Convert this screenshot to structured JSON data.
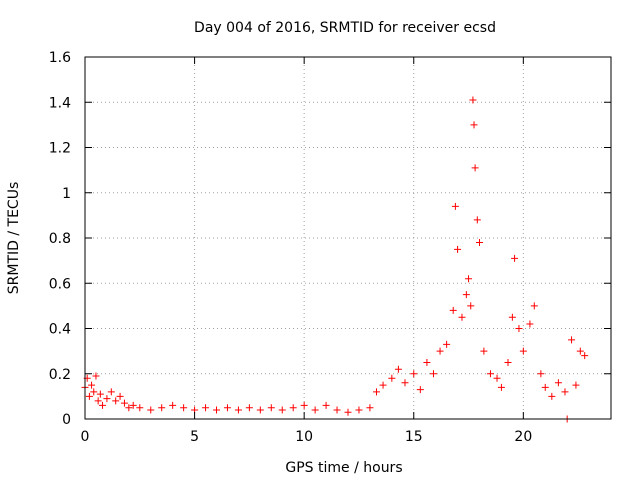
{
  "chart_data": {
    "type": "scatter",
    "title": "Day 004 of 2016, SRMTID for receiver ecsd",
    "xlabel": "GPS time / hours",
    "ylabel": "SRMTID / TECUs",
    "xlim": [
      0,
      24
    ],
    "ylim": [
      0,
      1.6
    ],
    "xticks": [
      0,
      5,
      10,
      15,
      20
    ],
    "xtick_labels": [
      "0",
      "5",
      "10",
      "15",
      "20"
    ],
    "yticks": [
      0,
      0.2,
      0.4,
      0.6,
      0.8,
      1.0,
      1.2,
      1.4,
      1.6
    ],
    "ytick_labels": [
      "0",
      "0.2",
      "0.4",
      "0.6",
      "0.8",
      "1",
      "1.2",
      "1.4",
      "1.6"
    ],
    "grid": true,
    "marker": "+",
    "series": [
      {
        "name": "SRMTID",
        "color": "#ff0000",
        "x": [
          0.0,
          0.1,
          0.2,
          0.3,
          0.4,
          0.5,
          0.6,
          0.7,
          0.8,
          1.0,
          1.2,
          1.4,
          1.6,
          1.8,
          2.0,
          2.2,
          2.5,
          3.0,
          3.5,
          4.0,
          4.5,
          5.0,
          5.5,
          6.0,
          6.5,
          7.0,
          7.5,
          8.0,
          8.5,
          9.0,
          9.5,
          10.0,
          10.5,
          11.0,
          11.5,
          12.0,
          12.5,
          13.0,
          13.3,
          13.6,
          14.0,
          14.3,
          14.6,
          15.0,
          15.3,
          15.6,
          15.9,
          16.2,
          16.5,
          16.8,
          16.9,
          17.0,
          17.2,
          17.4,
          17.5,
          17.6,
          17.7,
          17.75,
          17.8,
          17.9,
          18.0,
          18.2,
          18.5,
          18.8,
          19.0,
          19.3,
          19.5,
          19.6,
          19.8,
          20.0,
          20.3,
          20.5,
          20.8,
          21.0,
          21.3,
          21.6,
          21.9,
          22.0,
          22.2,
          22.4,
          22.6,
          22.8
        ],
        "y": [
          0.14,
          0.18,
          0.1,
          0.15,
          0.12,
          0.19,
          0.08,
          0.11,
          0.06,
          0.09,
          0.12,
          0.08,
          0.1,
          0.07,
          0.05,
          0.06,
          0.05,
          0.04,
          0.05,
          0.06,
          0.05,
          0.04,
          0.05,
          0.04,
          0.05,
          0.04,
          0.05,
          0.04,
          0.05,
          0.04,
          0.05,
          0.06,
          0.04,
          0.06,
          0.04,
          0.03,
          0.04,
          0.05,
          0.12,
          0.15,
          0.18,
          0.22,
          0.16,
          0.2,
          0.13,
          0.25,
          0.2,
          0.3,
          0.33,
          0.48,
          0.94,
          0.75,
          0.45,
          0.55,
          0.62,
          0.5,
          1.41,
          1.3,
          1.11,
          0.88,
          0.78,
          0.3,
          0.2,
          0.18,
          0.14,
          0.25,
          0.45,
          0.71,
          0.4,
          0.3,
          0.42,
          0.5,
          0.2,
          0.14,
          0.1,
          0.16,
          0.12,
          0.0,
          0.35,
          0.15,
          0.3,
          0.28
        ]
      }
    ]
  }
}
